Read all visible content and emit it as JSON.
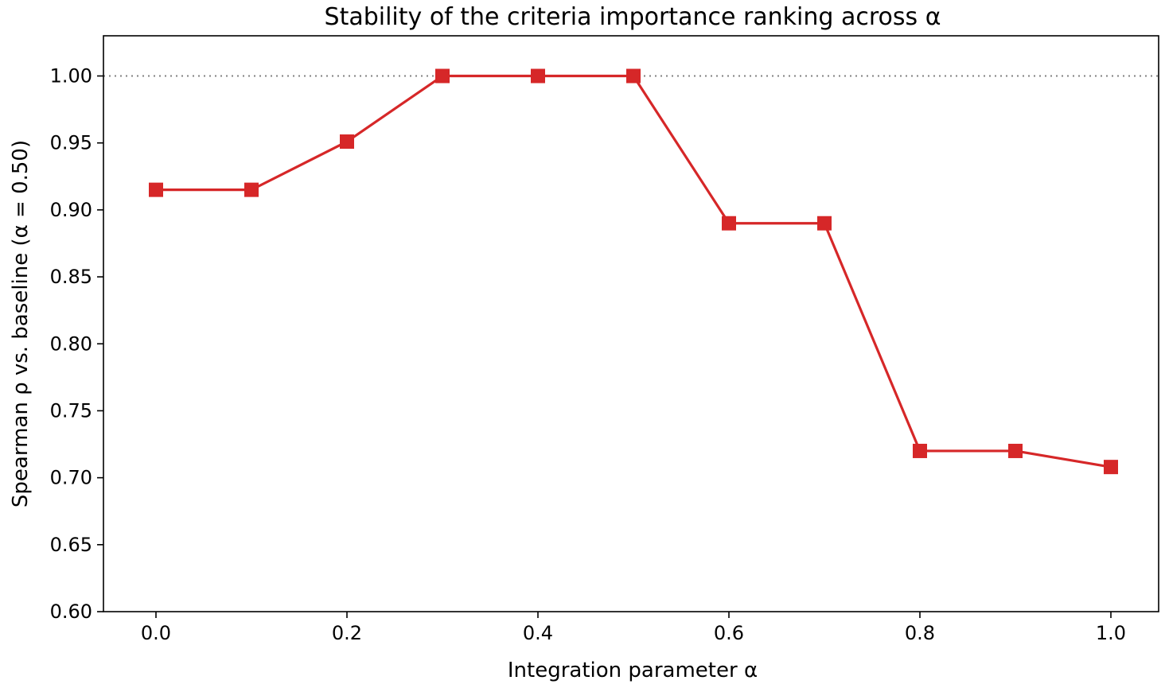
{
  "chart_data": {
    "type": "line",
    "title": "Stability of the criteria importance ranking across α",
    "xlabel": "Integration parameter  α",
    "ylabel": "Spearman ρ vs. baseline (α = 0.50)",
    "xlim": [
      -0.055,
      1.05
    ],
    "ylim": [
      0.6,
      1.03
    ],
    "xticks": [
      0.0,
      0.2,
      0.4,
      0.6,
      0.8,
      1.0
    ],
    "xtick_labels": [
      "0.0",
      "0.2",
      "0.4",
      "0.6",
      "0.8",
      "1.0"
    ],
    "yticks": [
      0.6,
      0.65,
      0.7,
      0.75,
      0.8,
      0.85,
      0.9,
      0.95,
      1.0
    ],
    "ytick_labels": [
      "0.60",
      "0.65",
      "0.70",
      "0.75",
      "0.80",
      "0.85",
      "0.90",
      "0.95",
      "1.00"
    ],
    "grid": false,
    "reference_line": {
      "y": 1.0,
      "style": "dotted",
      "color": "#808080"
    },
    "series": [
      {
        "color": "#d62728",
        "marker": "square",
        "x": [
          0.0,
          0.1,
          0.2,
          0.3,
          0.4,
          0.5,
          0.6,
          0.7,
          0.8,
          0.9,
          1.0
        ],
        "y": [
          0.915,
          0.915,
          0.951,
          1.0,
          1.0,
          1.0,
          0.89,
          0.89,
          0.72,
          0.72,
          0.708
        ]
      }
    ]
  }
}
